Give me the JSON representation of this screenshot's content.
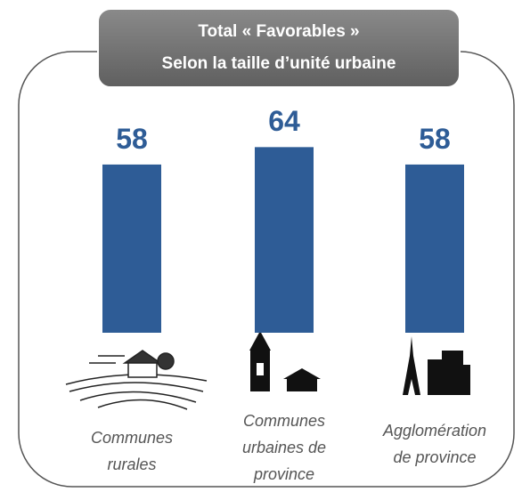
{
  "chart_data": {
    "type": "bar",
    "title": "Total « Favorables »\nSelon la taille d’unité urbaine",
    "categories": [
      "Communes\nrurales",
      "Communes\nurbaines de\nprovince",
      "Agglomération\nde province"
    ],
    "values": [
      58,
      64,
      58
    ],
    "color": "#2e5c96"
  }
}
